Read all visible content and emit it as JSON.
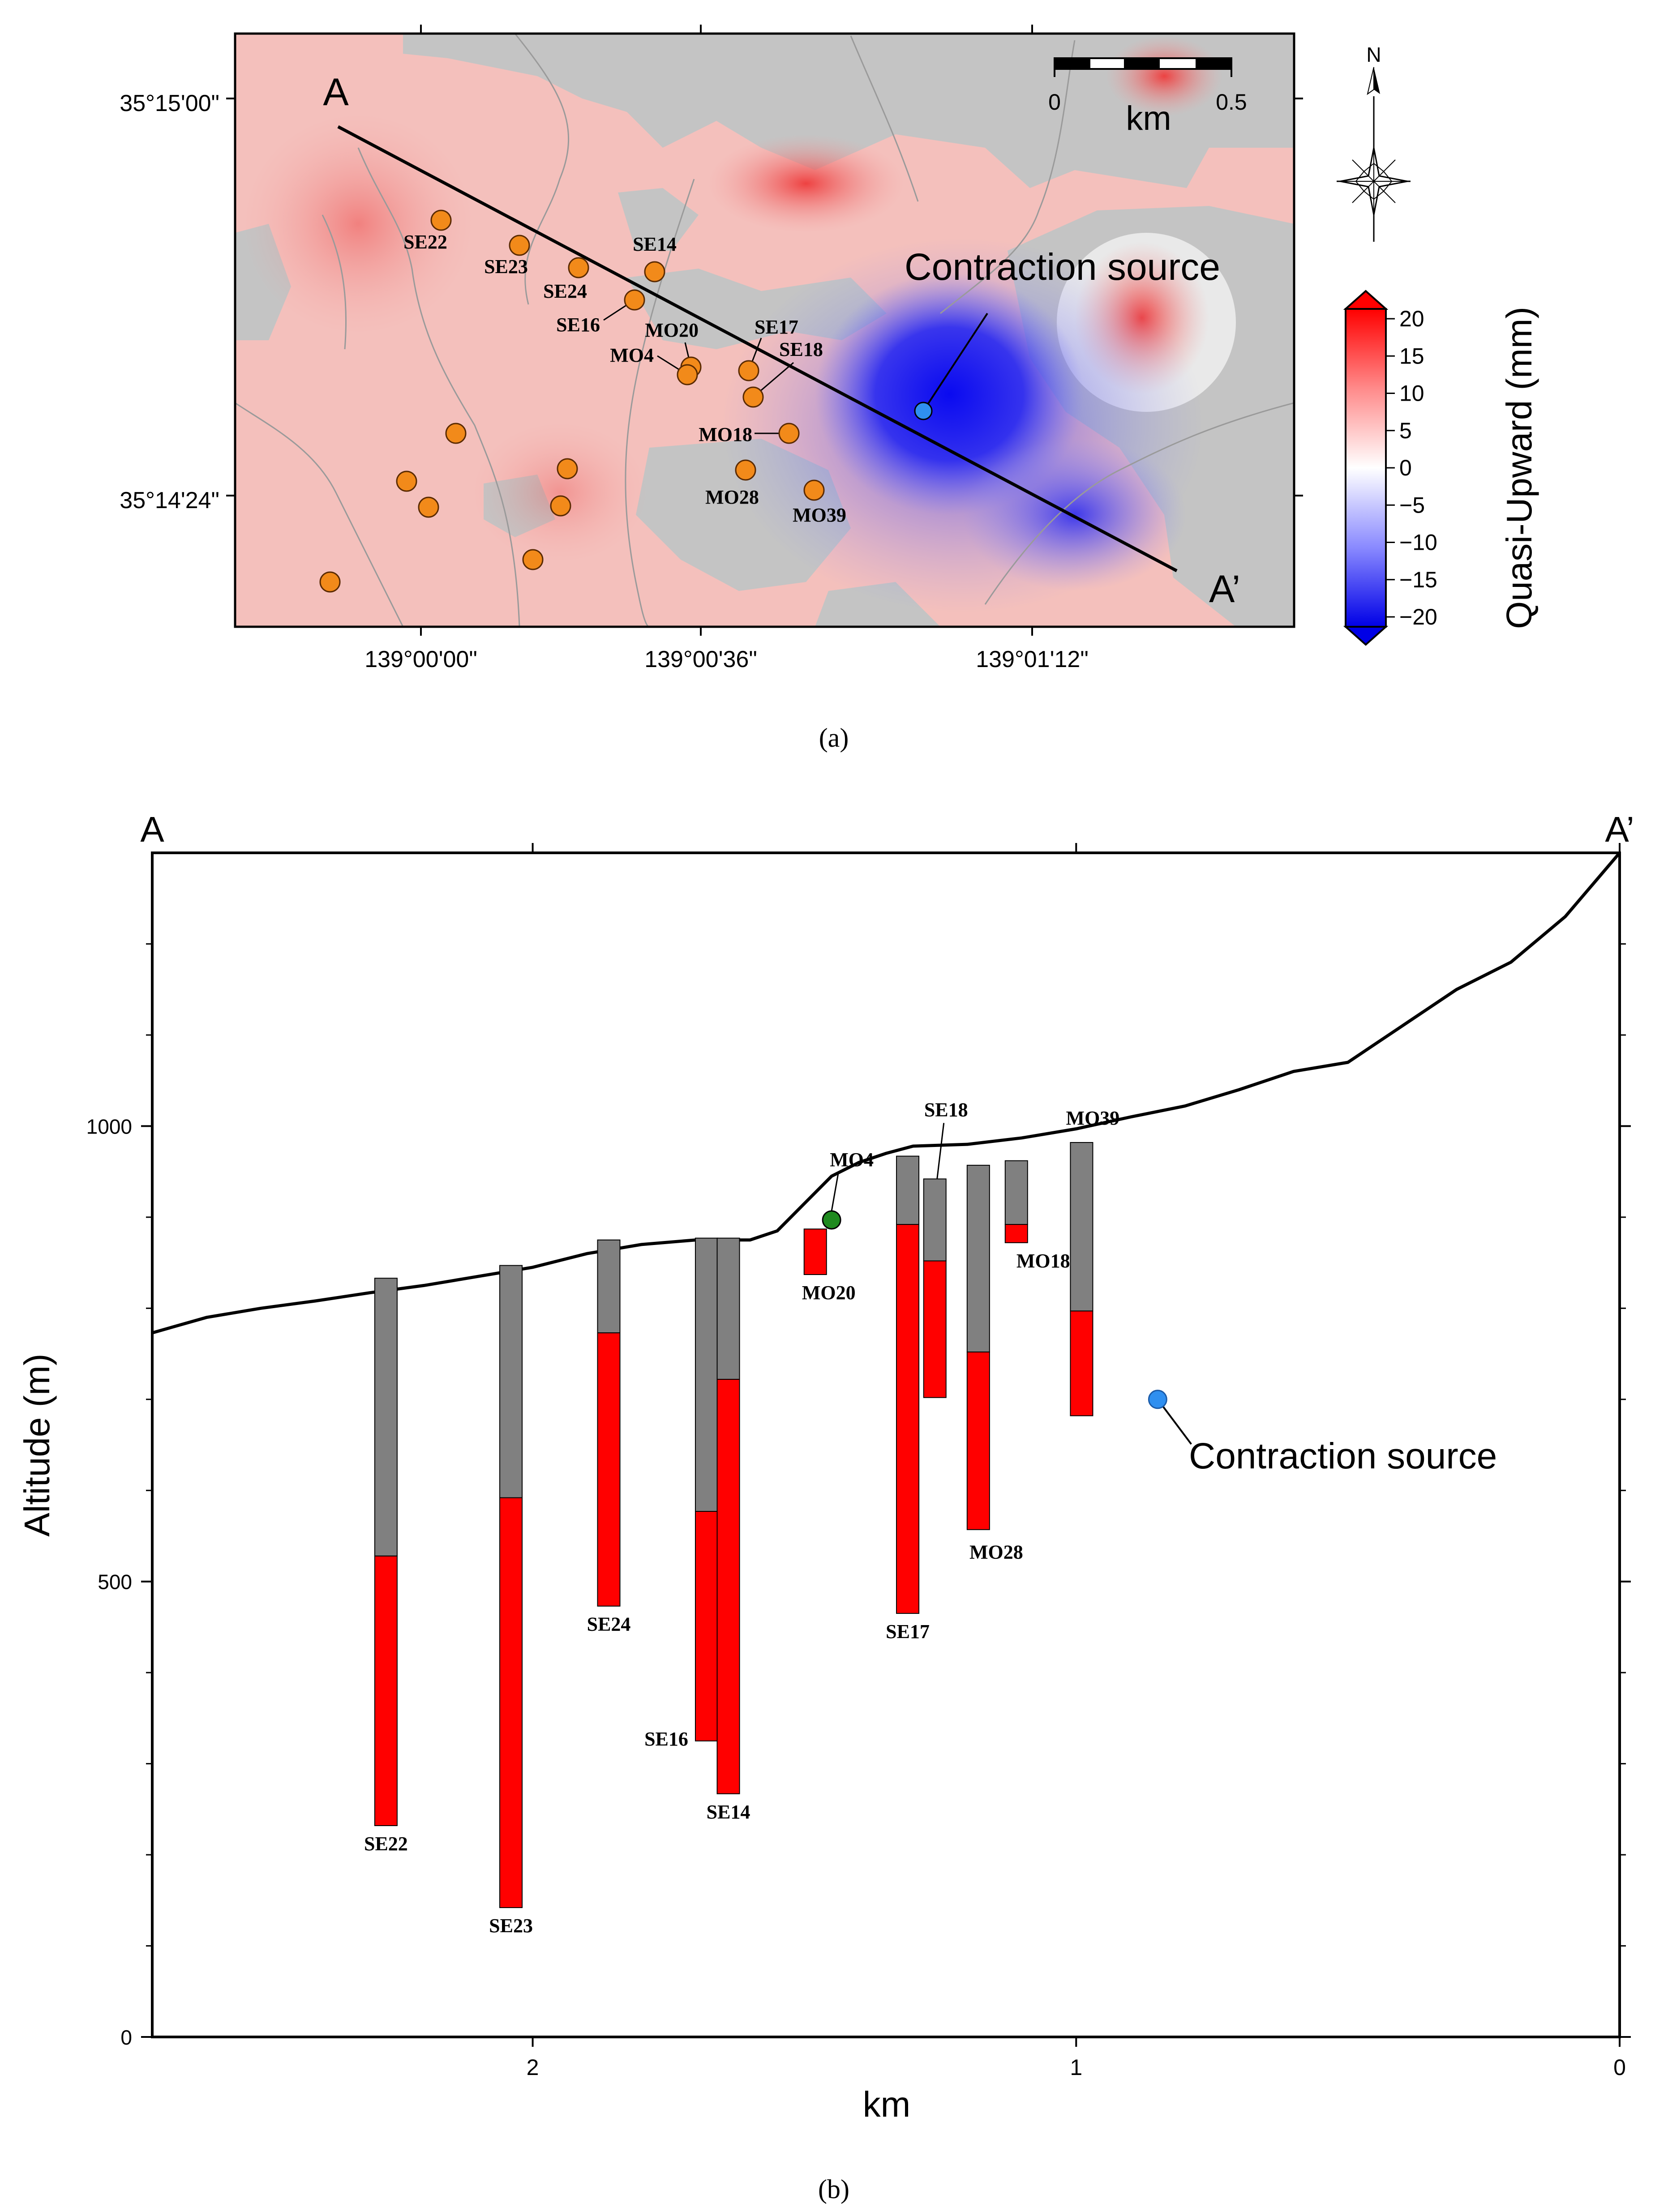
{
  "panel_a": {
    "caption": "(a)",
    "profile_start_label": "A",
    "profile_end_label": "A’",
    "lat_labels": [
      "35°15'00\"",
      "35°14'24\""
    ],
    "lon_labels": [
      "139°00'00\"",
      "139°00'36\"",
      "139°01'12\""
    ],
    "scalebar": {
      "start": "0",
      "end": "0.5",
      "unit": "km"
    },
    "north_label": "N",
    "source_label": "Contraction source",
    "colorbar": {
      "title": "Quasi-Upward (mm)",
      "ticks": [
        "20",
        "15",
        "10",
        "5",
        "0",
        "−5",
        "−10",
        "−15",
        "−20"
      ],
      "max": 20,
      "min": -20
    },
    "stations": [
      {
        "name": "SE22"
      },
      {
        "name": "SE23"
      },
      {
        "name": "SE24"
      },
      {
        "name": "SE14"
      },
      {
        "name": "SE16"
      },
      {
        "name": "MO20"
      },
      {
        "name": "MO4"
      },
      {
        "name": "SE17"
      },
      {
        "name": "SE18"
      },
      {
        "name": "MO18"
      },
      {
        "name": "MO28"
      },
      {
        "name": "MO39"
      }
    ],
    "colors": {
      "uplift": "#e8413a",
      "subsidence": "#1a1aef",
      "no_data": "#c4c4c4",
      "station": "#f28a1a",
      "source": "#2f8ff0"
    }
  },
  "panel_b": {
    "caption": "(b)",
    "start_label": "A",
    "end_label": "A’",
    "source_label": "Contraction source",
    "source_position": {
      "km": 0.85,
      "alt": 700
    },
    "mo4_position": {
      "km": 1.45,
      "alt": 897
    },
    "chart_data": {
      "type": "bar",
      "title": "",
      "xlabel": "km",
      "ylabel": "Altitude (m)",
      "x_ticks": [
        "2",
        "1",
        "0"
      ],
      "y_ticks": [
        "1000",
        "500",
        "0"
      ],
      "xlim": [
        2.7,
        0
      ],
      "ylim": [
        0,
        1300
      ],
      "series_colors": {
        "casing": "#808080",
        "screen": "#ff0000"
      },
      "wells": [
        {
          "name": "SE22",
          "km": 2.27,
          "top": 833,
          "screen_top": 528,
          "bottom": 232
        },
        {
          "name": "SE23",
          "km": 2.04,
          "top": 847,
          "screen_top": 592,
          "bottom": 142
        },
        {
          "name": "SE24",
          "km": 1.86,
          "top": 875,
          "screen_top": 773,
          "bottom": 473
        },
        {
          "name": "SE16",
          "km": 1.68,
          "top": 877,
          "screen_top": 577,
          "bottom": 325
        },
        {
          "name": "SE14",
          "km": 1.64,
          "top": 877,
          "screen_top": 722,
          "bottom": 267
        },
        {
          "name": "MO20",
          "km": 1.48,
          "top": 887,
          "screen_top": 887,
          "bottom": 837
        },
        {
          "name": "SE17",
          "km": 1.31,
          "top": 967,
          "screen_top": 892,
          "bottom": 465
        },
        {
          "name": "SE18",
          "km": 1.26,
          "top": 942,
          "screen_top": 852,
          "bottom": 702
        },
        {
          "name": "MO28",
          "km": 1.18,
          "top": 957,
          "screen_top": 752,
          "bottom": 557
        },
        {
          "name": "MO18",
          "km": 1.11,
          "top": 962,
          "screen_top": 892,
          "bottom": 872
        },
        {
          "name": "MO39",
          "km": 0.99,
          "top": 982,
          "screen_top": 797,
          "bottom": 682
        }
      ],
      "terrain": {
        "km": [
          2.7,
          2.6,
          2.5,
          2.4,
          2.3,
          2.2,
          2.1,
          2.0,
          1.9,
          1.8,
          1.7,
          1.6,
          1.55,
          1.5,
          1.45,
          1.4,
          1.35,
          1.3,
          1.2,
          1.1,
          1.0,
          0.9,
          0.8,
          0.7,
          0.6,
          0.5,
          0.4,
          0.3,
          0.2,
          0.1,
          0.0
        ],
        "alt": [
          773,
          790,
          800,
          808,
          817,
          825,
          835,
          845,
          860,
          870,
          875,
          875,
          885,
          915,
          945,
          960,
          970,
          978,
          980,
          987,
          997,
          1010,
          1022,
          1040,
          1060,
          1070,
          1110,
          1150,
          1180,
          1230,
          1300
        ]
      }
    }
  }
}
